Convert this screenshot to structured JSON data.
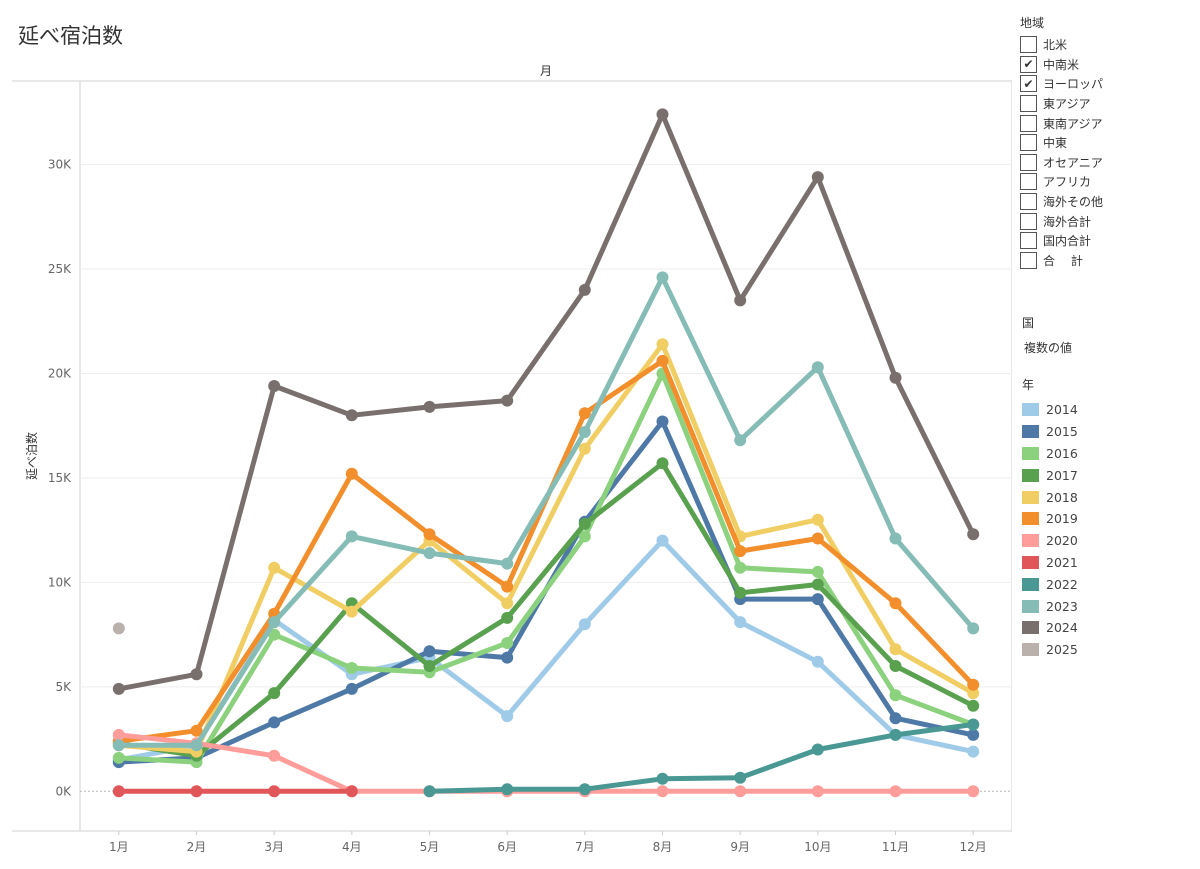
{
  "title": "延べ宿泊数",
  "filters": {
    "region_title": "地域",
    "items": [
      {
        "label": "北米",
        "checked": false
      },
      {
        "label": "中南米",
        "checked": true
      },
      {
        "label": "ヨーロッパ",
        "checked": true
      },
      {
        "label": "東アジア",
        "checked": false
      },
      {
        "label": "東南アジア",
        "checked": false
      },
      {
        "label": "中東",
        "checked": false
      },
      {
        "label": "オセアニア",
        "checked": false
      },
      {
        "label": "アフリカ",
        "checked": false
      },
      {
        "label": "海外その他",
        "checked": false
      },
      {
        "label": "海外合計",
        "checked": false
      },
      {
        "label": "国内合計",
        "checked": false
      },
      {
        "label": "合　 計",
        "checked": false
      }
    ],
    "country_title": "国",
    "country_value": "複数の値",
    "year_title": "年"
  },
  "check_glyph": "✔",
  "chart_data": {
    "type": "line",
    "title": "延べ宿泊数",
    "column_header": "月",
    "xlabel": "",
    "ylabel": "延べ泊数",
    "categories": [
      "1月",
      "2月",
      "3月",
      "4月",
      "5月",
      "6月",
      "7月",
      "8月",
      "9月",
      "10月",
      "11月",
      "12月"
    ],
    "ylim": [
      -1900,
      34000
    ],
    "yticks": [
      0,
      5000,
      10000,
      15000,
      20000,
      25000,
      30000
    ],
    "ytick_labels": [
      "0K",
      "5K",
      "10K",
      "15K",
      "20K",
      "25K",
      "30K"
    ],
    "grid": true,
    "legend_position": "right",
    "series": [
      {
        "name": "2014",
        "color": "#a0cbe8",
        "values": [
          1500,
          2200,
          8200,
          5600,
          6400,
          3600,
          8000,
          12000,
          8100,
          6200,
          2700,
          1900
        ]
      },
      {
        "name": "2015",
        "color": "#4e79a7",
        "values": [
          1400,
          1600,
          3300,
          4900,
          6700,
          6400,
          12900,
          17700,
          9200,
          9200,
          3500,
          2700
        ]
      },
      {
        "name": "2016",
        "color": "#8cd17d",
        "values": [
          1600,
          1400,
          7500,
          5900,
          5700,
          7100,
          12200,
          20000,
          10700,
          10500,
          4600,
          3200
        ]
      },
      {
        "name": "2017",
        "color": "#59a14f",
        "values": [
          2300,
          1700,
          4700,
          9000,
          6000,
          8300,
          12800,
          15700,
          9500,
          9900,
          6000,
          4100
        ]
      },
      {
        "name": "2018",
        "color": "#f1ce63",
        "values": [
          2200,
          1900,
          10700,
          8600,
          12000,
          9000,
          16400,
          21400,
          12200,
          13000,
          6800,
          4700
        ]
      },
      {
        "name": "2019",
        "color": "#f28e2b",
        "values": [
          2400,
          2900,
          8500,
          15200,
          12300,
          9800,
          18100,
          20600,
          11500,
          12100,
          9000,
          5100
        ]
      },
      {
        "name": "2020",
        "color": "#ff9d9a",
        "values": [
          2700,
          2300,
          1700,
          0,
          0,
          0,
          0,
          0,
          0,
          0,
          0,
          0
        ]
      },
      {
        "name": "2021",
        "color": "#e15759",
        "values": [
          0,
          0,
          0,
          0,
          null,
          null,
          null,
          null,
          null,
          null,
          null,
          null
        ]
      },
      {
        "name": "2022",
        "color": "#499894",
        "values": [
          null,
          null,
          null,
          null,
          0,
          100,
          100,
          600,
          650,
          2000,
          2700,
          3200
        ]
      },
      {
        "name": "2023",
        "color": "#86bcb6",
        "values": [
          2200,
          2200,
          8100,
          12200,
          11400,
          10900,
          17200,
          24600,
          16800,
          20300,
          12100,
          7800
        ]
      },
      {
        "name": "2024",
        "color": "#79706e",
        "values": [
          4900,
          5600,
          19400,
          18000,
          18400,
          18700,
          24000,
          32400,
          23500,
          29400,
          19800,
          12300
        ]
      },
      {
        "name": "2025",
        "color": "#bab0ac",
        "values": [
          7800,
          null,
          null,
          null,
          null,
          null,
          null,
          null,
          null,
          null,
          null,
          null
        ]
      }
    ]
  }
}
